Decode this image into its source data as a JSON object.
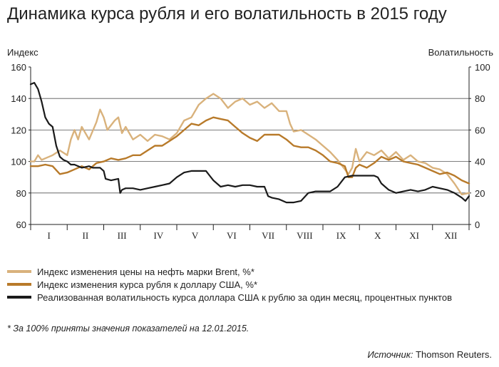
{
  "title": "Динамика курса рубля и его волатильность в 2015 году",
  "footnote": "* За 100% приняты значения показателей на 12.01.2015.",
  "source": {
    "label": "Источник:",
    "text": " Thomson Reuters."
  },
  "chart_data": {
    "type": "line",
    "y_left": {
      "label": "Индекс",
      "range": [
        60,
        160
      ],
      "ticks": [
        "60",
        "80",
        "100",
        "120",
        "140",
        "160"
      ]
    },
    "y_right": {
      "label": "Волатильность",
      "range": [
        0,
        100
      ],
      "ticks": [
        "0",
        "20",
        "40",
        "60",
        "80",
        "100"
      ]
    },
    "x": {
      "range": [
        0,
        12
      ],
      "months": [
        "I",
        "II",
        "III",
        "IV",
        "V",
        "VI",
        "VII",
        "VIII",
        "IX",
        "X",
        "XI",
        "XII"
      ]
    },
    "grid": true,
    "legend_position": "bottom",
    "series": [
      {
        "name": "Индекс изменения цены на нефть марки Brent, %*",
        "axis": "left",
        "color": "#d9b27c",
        "points": [
          [
            0,
            100
          ],
          [
            0.1,
            100
          ],
          [
            0.2,
            104
          ],
          [
            0.3,
            101
          ],
          [
            0.4,
            102
          ],
          [
            0.6,
            104
          ],
          [
            0.8,
            107
          ],
          [
            1.0,
            104
          ],
          [
            1.1,
            114
          ],
          [
            1.2,
            120
          ],
          [
            1.3,
            114
          ],
          [
            1.4,
            122
          ],
          [
            1.6,
            114
          ],
          [
            1.8,
            125
          ],
          [
            1.9,
            133
          ],
          [
            2.0,
            128
          ],
          [
            2.1,
            120
          ],
          [
            2.3,
            126
          ],
          [
            2.4,
            128
          ],
          [
            2.5,
            118
          ],
          [
            2.6,
            122
          ],
          [
            2.8,
            114
          ],
          [
            3.0,
            117
          ],
          [
            3.2,
            113
          ],
          [
            3.4,
            117
          ],
          [
            3.6,
            116
          ],
          [
            3.8,
            114
          ],
          [
            4.0,
            118
          ],
          [
            4.2,
            126
          ],
          [
            4.4,
            128
          ],
          [
            4.6,
            136
          ],
          [
            4.8,
            140
          ],
          [
            5.0,
            143
          ],
          [
            5.2,
            140
          ],
          [
            5.4,
            134
          ],
          [
            5.6,
            138
          ],
          [
            5.8,
            140
          ],
          [
            6.0,
            136
          ],
          [
            6.2,
            138
          ],
          [
            6.4,
            134
          ],
          [
            6.6,
            137
          ],
          [
            6.8,
            132
          ],
          [
            7.0,
            132
          ],
          [
            7.1,
            124
          ],
          [
            7.2,
            119
          ],
          [
            7.4,
            120
          ],
          [
            7.6,
            117
          ],
          [
            7.8,
            114
          ],
          [
            8.0,
            110
          ],
          [
            8.2,
            106
          ],
          [
            8.4,
            101
          ],
          [
            8.6,
            95
          ],
          [
            8.7,
            92
          ],
          [
            8.8,
            96
          ],
          [
            8.9,
            108
          ],
          [
            9.0,
            100
          ],
          [
            9.2,
            106
          ],
          [
            9.4,
            104
          ],
          [
            9.6,
            107
          ],
          [
            9.8,
            102
          ],
          [
            10.0,
            106
          ],
          [
            10.2,
            101
          ],
          [
            10.4,
            104
          ],
          [
            10.6,
            100
          ],
          [
            10.8,
            99
          ],
          [
            11.0,
            96
          ],
          [
            11.2,
            95
          ],
          [
            11.4,
            92
          ],
          [
            11.6,
            86
          ],
          [
            11.8,
            79
          ],
          [
            12.0,
            80
          ]
        ]
      },
      {
        "name": "Индекс изменения курса рубля к доллару США, %*",
        "axis": "left",
        "color": "#b87a2a",
        "points": [
          [
            0,
            97
          ],
          [
            0.2,
            97
          ],
          [
            0.4,
            98
          ],
          [
            0.6,
            97
          ],
          [
            0.8,
            92
          ],
          [
            1.0,
            93
          ],
          [
            1.2,
            95
          ],
          [
            1.4,
            97
          ],
          [
            1.6,
            95
          ],
          [
            1.8,
            99
          ],
          [
            2.0,
            100
          ],
          [
            2.2,
            102
          ],
          [
            2.4,
            101
          ],
          [
            2.6,
            102
          ],
          [
            2.8,
            104
          ],
          [
            3.0,
            104
          ],
          [
            3.2,
            107
          ],
          [
            3.4,
            110
          ],
          [
            3.6,
            110
          ],
          [
            3.8,
            113
          ],
          [
            4.0,
            116
          ],
          [
            4.2,
            120
          ],
          [
            4.4,
            124
          ],
          [
            4.6,
            123
          ],
          [
            4.8,
            126
          ],
          [
            5.0,
            128
          ],
          [
            5.2,
            127
          ],
          [
            5.4,
            126
          ],
          [
            5.6,
            122
          ],
          [
            5.8,
            118
          ],
          [
            6.0,
            115
          ],
          [
            6.2,
            113
          ],
          [
            6.4,
            117
          ],
          [
            6.6,
            117
          ],
          [
            6.8,
            117
          ],
          [
            7.0,
            114
          ],
          [
            7.2,
            110
          ],
          [
            7.4,
            109
          ],
          [
            7.6,
            109
          ],
          [
            7.8,
            107
          ],
          [
            8.0,
            104
          ],
          [
            8.2,
            100
          ],
          [
            8.4,
            99
          ],
          [
            8.6,
            97
          ],
          [
            8.7,
            90
          ],
          [
            8.8,
            90
          ],
          [
            8.9,
            96
          ],
          [
            9.0,
            98
          ],
          [
            9.2,
            96
          ],
          [
            9.4,
            99
          ],
          [
            9.6,
            103
          ],
          [
            9.8,
            101
          ],
          [
            10.0,
            103
          ],
          [
            10.2,
            100
          ],
          [
            10.4,
            99
          ],
          [
            10.6,
            98
          ],
          [
            10.8,
            96
          ],
          [
            11.0,
            94
          ],
          [
            11.2,
            92
          ],
          [
            11.4,
            93
          ],
          [
            11.6,
            91
          ],
          [
            11.8,
            88
          ],
          [
            12.0,
            86
          ]
        ]
      },
      {
        "name": "Реализованная волатильность курса доллара США к рублю за один месяц, процентных пунктов",
        "axis": "right",
        "color": "#1a1a1a",
        "points": [
          [
            0,
            89
          ],
          [
            0.1,
            90
          ],
          [
            0.2,
            86
          ],
          [
            0.3,
            78
          ],
          [
            0.4,
            68
          ],
          [
            0.5,
            64
          ],
          [
            0.6,
            62
          ],
          [
            0.7,
            50
          ],
          [
            0.8,
            43
          ],
          [
            0.9,
            41
          ],
          [
            1.0,
            40
          ],
          [
            1.1,
            38
          ],
          [
            1.2,
            38
          ],
          [
            1.4,
            36
          ],
          [
            1.6,
            37
          ],
          [
            1.7,
            36
          ],
          [
            1.8,
            36
          ],
          [
            1.9,
            36
          ],
          [
            2.0,
            34
          ],
          [
            2.05,
            29
          ],
          [
            2.2,
            28
          ],
          [
            2.4,
            29
          ],
          [
            2.45,
            20
          ],
          [
            2.5,
            22
          ],
          [
            2.6,
            23
          ],
          [
            2.8,
            23
          ],
          [
            3.0,
            22
          ],
          [
            3.2,
            23
          ],
          [
            3.4,
            24
          ],
          [
            3.6,
            25
          ],
          [
            3.8,
            26
          ],
          [
            4.0,
            30
          ],
          [
            4.2,
            33
          ],
          [
            4.4,
            34
          ],
          [
            4.6,
            34
          ],
          [
            4.8,
            34
          ],
          [
            4.9,
            31
          ],
          [
            5.0,
            28
          ],
          [
            5.2,
            24
          ],
          [
            5.4,
            25
          ],
          [
            5.6,
            24
          ],
          [
            5.8,
            25
          ],
          [
            6.0,
            25
          ],
          [
            6.2,
            24
          ],
          [
            6.4,
            24
          ],
          [
            6.5,
            18
          ],
          [
            6.6,
            17
          ],
          [
            6.8,
            16
          ],
          [
            7.0,
            14
          ],
          [
            7.2,
            14
          ],
          [
            7.4,
            15
          ],
          [
            7.6,
            20
          ],
          [
            7.8,
            21
          ],
          [
            8.0,
            21
          ],
          [
            8.2,
            21
          ],
          [
            8.4,
            24
          ],
          [
            8.6,
            30
          ],
          [
            8.8,
            31
          ],
          [
            9.0,
            31
          ],
          [
            9.2,
            31
          ],
          [
            9.4,
            31
          ],
          [
            9.5,
            30
          ],
          [
            9.6,
            26
          ],
          [
            9.8,
            22
          ],
          [
            10.0,
            20
          ],
          [
            10.2,
            21
          ],
          [
            10.4,
            22
          ],
          [
            10.6,
            21
          ],
          [
            10.8,
            22
          ],
          [
            11.0,
            24
          ],
          [
            11.2,
            23
          ],
          [
            11.4,
            22
          ],
          [
            11.6,
            20
          ],
          [
            11.8,
            17
          ],
          [
            11.9,
            15
          ],
          [
            12.0,
            18
          ]
        ]
      }
    ]
  }
}
